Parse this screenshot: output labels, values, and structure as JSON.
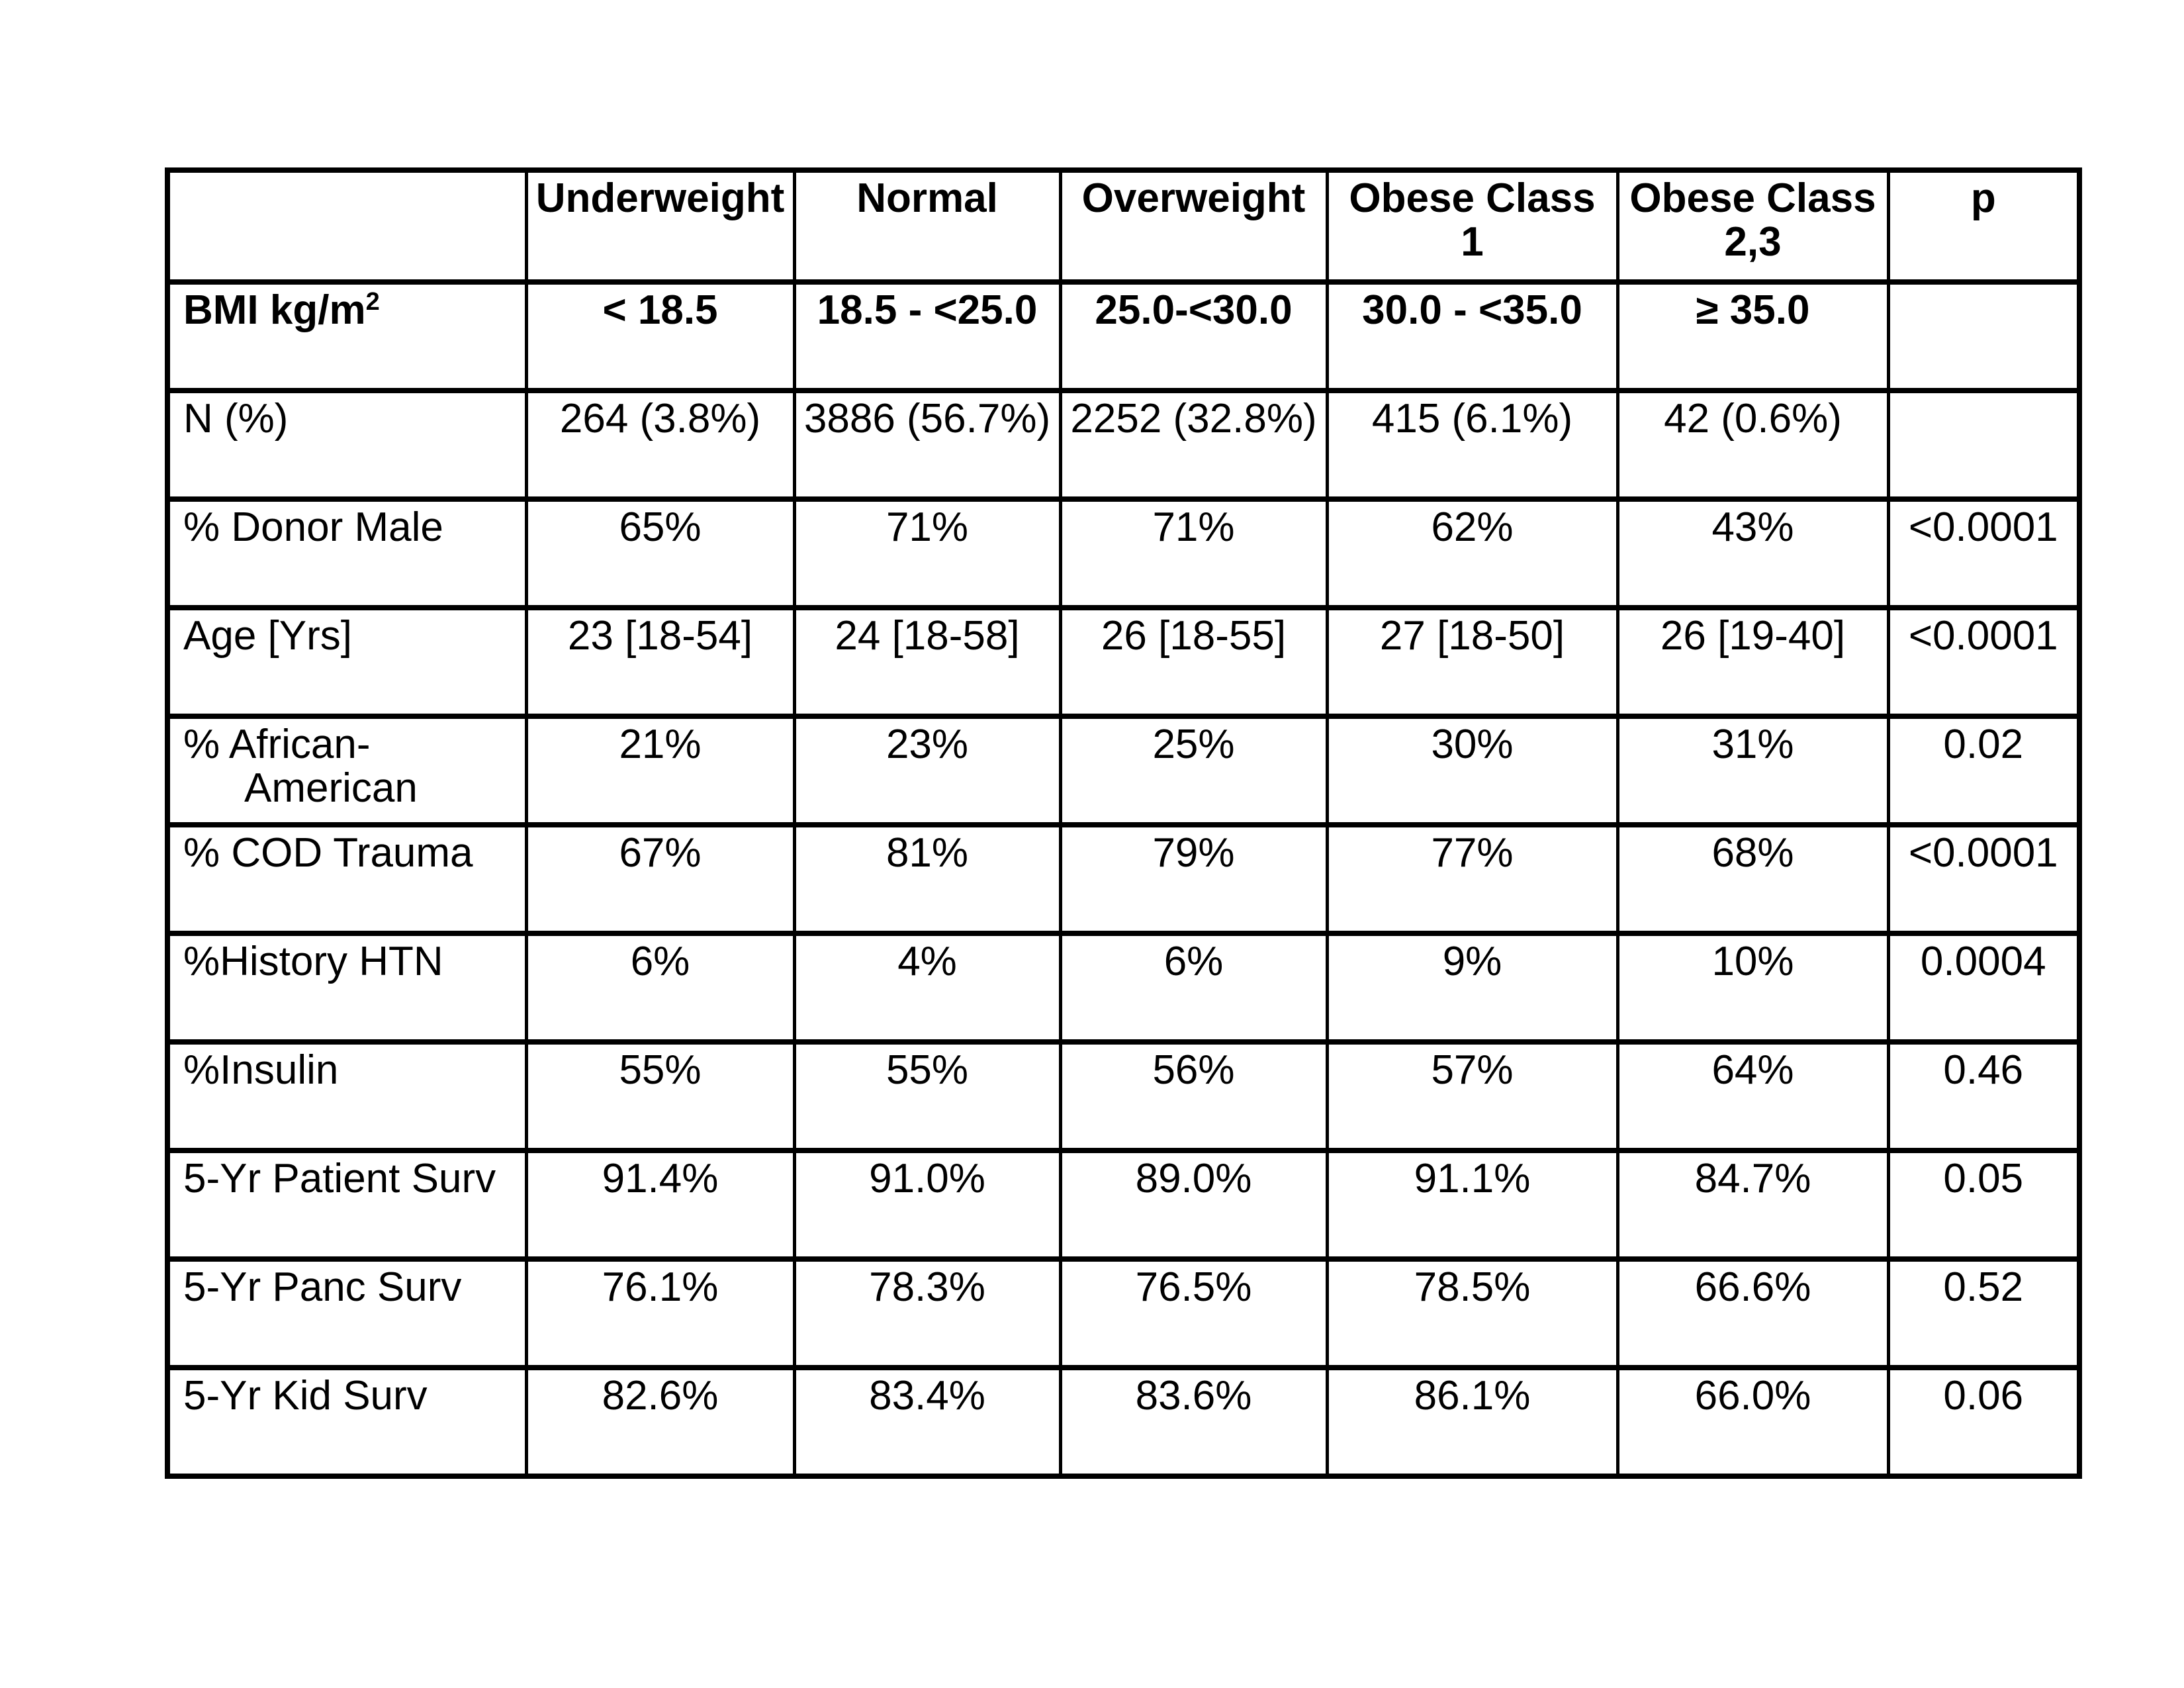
{
  "page": {
    "background": "#ffffff",
    "border_color": "#000000",
    "text_color": "#000000"
  },
  "table": {
    "header": [
      "",
      "Underweight",
      "Normal",
      "Overweight",
      "Obese Class 1",
      "Obese Class 2,3",
      "p"
    ],
    "rows": [
      {
        "label": "BMI kg/m",
        "label_sup": "2",
        "bold": true,
        "values": [
          "< 18.5",
          "18.5 - <25.0",
          "25.0-<30.0",
          "30.0 - <35.0",
          "≥ 35.0",
          ""
        ]
      },
      {
        "label": "N (%)",
        "values": [
          "264 (3.8%)",
          "3886 (56.7%)",
          "2252 (32.8%)",
          "415 (6.1%)",
          "42 (0.6%)",
          ""
        ]
      },
      {
        "label": "% Donor Male",
        "values": [
          "65%",
          "71%",
          "71%",
          "62%",
          "43%",
          "<0.0001"
        ]
      },
      {
        "label": "Age [Yrs]",
        "values": [
          "23 [18-54]",
          "24 [18-58]",
          "26 [18-55]",
          "27 [18-50]",
          "26 [19-40]",
          "<0.0001"
        ]
      },
      {
        "label_lines": [
          "% African-",
          "American"
        ],
        "values": [
          "21%",
          "23%",
          "25%",
          "30%",
          "31%",
          "0.02"
        ]
      },
      {
        "label": "% COD Trauma",
        "values": [
          "67%",
          "81%",
          "79%",
          "77%",
          "68%",
          "<0.0001"
        ]
      },
      {
        "label": "%History HTN",
        "values": [
          "6%",
          "4%",
          "6%",
          "9%",
          "10%",
          "0.0004"
        ]
      },
      {
        "label": "%Insulin",
        "values": [
          "55%",
          "55%",
          "56%",
          "57%",
          "64%",
          "0.46"
        ]
      },
      {
        "label": "5-Yr Patient Surv",
        "values": [
          "91.4%",
          "91.0%",
          "89.0%",
          "91.1%",
          "84.7%",
          "0.05"
        ]
      },
      {
        "label": "5-Yr Panc Surv",
        "values": [
          "76.1%",
          "78.3%",
          "76.5%",
          "78.5%",
          "66.6%",
          "0.52"
        ]
      },
      {
        "label": "5-Yr Kid Surv",
        "values": [
          "82.6%",
          "83.4%",
          "83.6%",
          "86.1%",
          "66.0%",
          "0.06"
        ]
      }
    ]
  }
}
